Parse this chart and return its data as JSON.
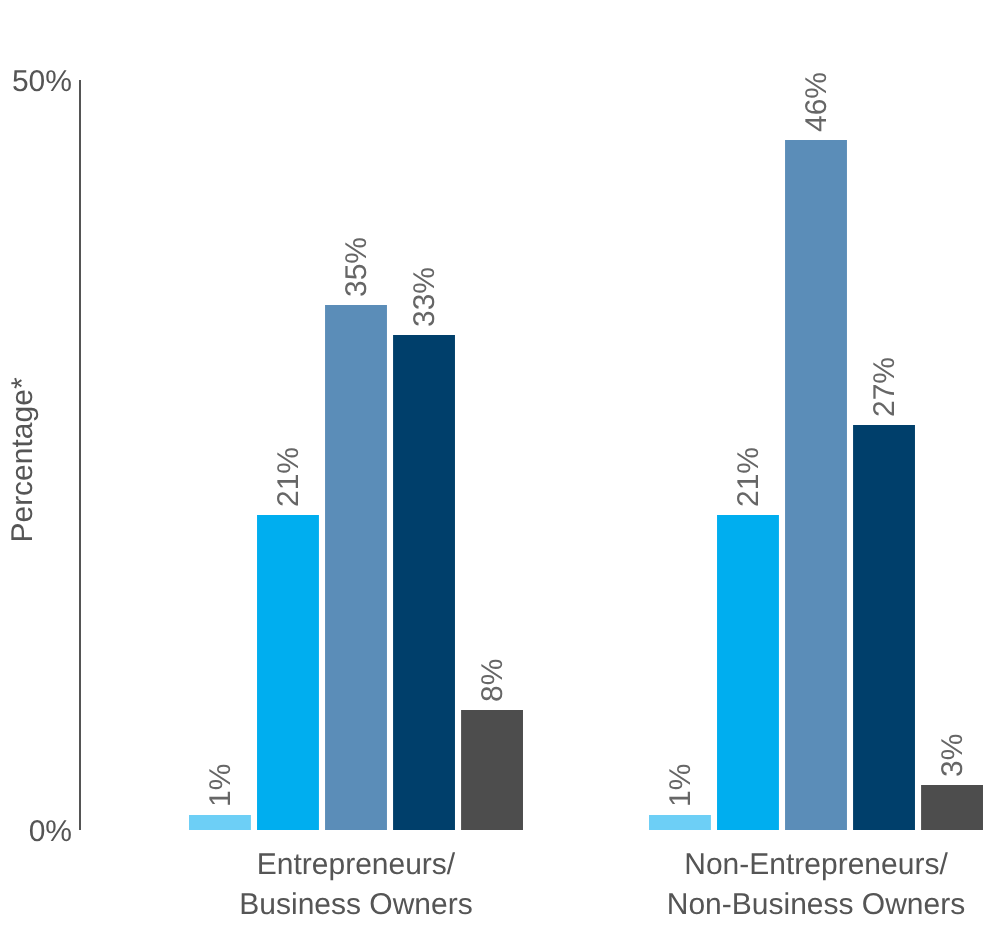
{
  "chart_data": {
    "type": "bar",
    "ylabel": "Percentage*",
    "categories": [
      "Entrepreneurs/\nBusiness Owners",
      "Non-Entrepreneurs/\nNon-Business Owners"
    ],
    "series": [
      {
        "color": "#6dcff6",
        "values": [
          1,
          1
        ],
        "value_labels": [
          "1%",
          "1%"
        ]
      },
      {
        "color": "#00aeef",
        "values": [
          21,
          21
        ],
        "value_labels": [
          "21%",
          "21%"
        ]
      },
      {
        "color": "#5b8db8",
        "values": [
          35,
          46
        ],
        "value_labels": [
          "35%",
          "46%"
        ]
      },
      {
        "color": "#003f6b",
        "values": [
          33,
          27
        ],
        "value_labels": [
          "33%",
          "27%"
        ]
      },
      {
        "color": "#4d4d4d",
        "values": [
          8,
          3
        ],
        "value_labels": [
          "8%",
          "3%"
        ]
      }
    ],
    "ylim": [
      0,
      50
    ],
    "yticks": [
      {
        "value": 0,
        "label": "0%"
      },
      {
        "value": 50,
        "label": "50%"
      }
    ],
    "grid": false
  }
}
